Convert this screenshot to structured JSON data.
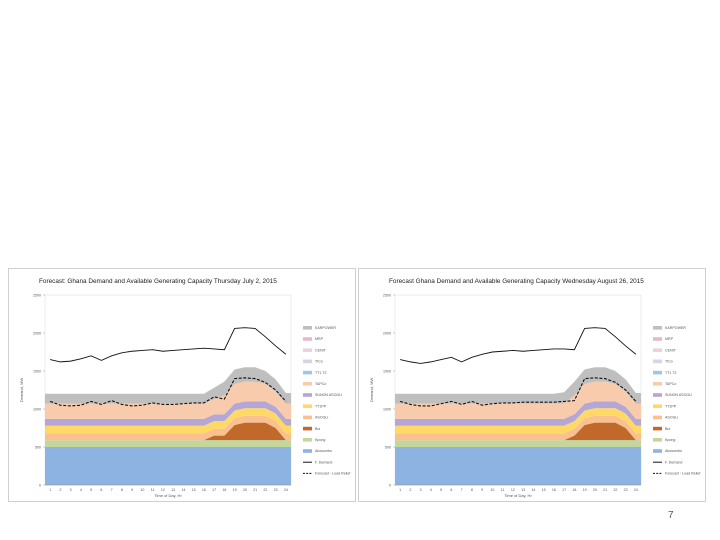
{
  "page_number": "7",
  "chart_data": [
    {
      "type": "area",
      "title": "Forecast: Ghana Demand and Available Generating Capacity Thursday July 2, 2015",
      "xlabel": "Time of Day, Hr",
      "ylabel": "Demand, MW",
      "ylim": [
        0,
        2500
      ],
      "yticks": [
        0,
        500,
        1000,
        1500,
        2000,
        2500
      ],
      "categories": [
        "1",
        "2",
        "3",
        "4",
        "5",
        "6",
        "7",
        "8",
        "9",
        "10",
        "11",
        "12",
        "13",
        "14",
        "15",
        "16",
        "17",
        "18",
        "19",
        "20",
        "21",
        "22",
        "23",
        "24"
      ],
      "series": [
        {
          "name": "Akosombo",
          "color": "#8db3e2",
          "values": [
            500,
            500,
            500,
            500,
            500,
            500,
            500,
            500,
            500,
            500,
            500,
            500,
            500,
            500,
            500,
            500,
            500,
            500,
            500,
            500,
            500,
            500,
            500,
            500
          ]
        },
        {
          "name": "Kpong",
          "color": "#c3d69b",
          "values": [
            90,
            90,
            90,
            90,
            90,
            90,
            90,
            90,
            90,
            90,
            90,
            90,
            90,
            90,
            90,
            90,
            90,
            90,
            90,
            90,
            90,
            90,
            90,
            90
          ]
        },
        {
          "name": "Bui",
          "color": "#c0692b",
          "values": [
            0,
            0,
            0,
            0,
            0,
            0,
            0,
            0,
            0,
            0,
            0,
            0,
            0,
            0,
            0,
            0,
            60,
            60,
            200,
            230,
            230,
            230,
            160,
            0
          ]
        },
        {
          "name": "ASOGLI",
          "color": "#fac090",
          "values": [
            90,
            90,
            90,
            90,
            90,
            90,
            90,
            90,
            90,
            90,
            90,
            90,
            90,
            90,
            90,
            90,
            90,
            90,
            90,
            90,
            90,
            90,
            90,
            90
          ]
        },
        {
          "name": "TT1PP",
          "color": "#ffd966",
          "values": [
            100,
            100,
            100,
            100,
            100,
            100,
            100,
            100,
            100,
            100,
            100,
            100,
            100,
            100,
            100,
            100,
            100,
            100,
            100,
            100,
            100,
            100,
            100,
            100
          ]
        },
        {
          "name": "SUNON ASOGLI",
          "color": "#b4a7d6",
          "values": [
            90,
            90,
            90,
            90,
            90,
            90,
            90,
            90,
            90,
            90,
            90,
            90,
            90,
            90,
            90,
            90,
            90,
            90,
            90,
            90,
            90,
            90,
            90,
            90
          ]
        },
        {
          "name": "TAPCo",
          "color": "#f8cbad",
          "values": [
            200,
            200,
            200,
            200,
            200,
            200,
            200,
            200,
            200,
            200,
            200,
            200,
            200,
            200,
            200,
            200,
            200,
            250,
            260,
            260,
            260,
            230,
            200,
            200
          ]
        },
        {
          "name": "TT1 T2",
          "color": "#9fc5e8",
          "values": [
            0,
            0,
            0,
            0,
            0,
            0,
            0,
            0,
            0,
            0,
            0,
            0,
            0,
            0,
            0,
            0,
            0,
            0,
            0,
            0,
            0,
            0,
            0,
            0
          ]
        },
        {
          "name": "TICo",
          "color": "#d9d2e9",
          "values": [
            0,
            0,
            0,
            0,
            0,
            0,
            0,
            0,
            0,
            0,
            0,
            0,
            0,
            0,
            0,
            0,
            0,
            0,
            0,
            0,
            0,
            0,
            0,
            0
          ]
        },
        {
          "name": "CENIT",
          "color": "#ead1dc",
          "values": [
            0,
            0,
            0,
            0,
            0,
            0,
            0,
            0,
            0,
            0,
            0,
            0,
            0,
            0,
            0,
            0,
            0,
            0,
            0,
            0,
            0,
            0,
            0,
            0
          ]
        },
        {
          "name": "MRP",
          "color": "#e6b8d0",
          "values": [
            0,
            0,
            0,
            0,
            0,
            0,
            0,
            0,
            0,
            0,
            0,
            0,
            0,
            0,
            0,
            0,
            0,
            0,
            0,
            0,
            0,
            0,
            0,
            0
          ]
        },
        {
          "name": "KARPOWER",
          "color": "#bfbfbf",
          "values": [
            130,
            130,
            130,
            130,
            130,
            130,
            130,
            130,
            130,
            130,
            130,
            130,
            130,
            130,
            130,
            130,
            150,
            180,
            190,
            190,
            190,
            170,
            160,
            140
          ]
        }
      ],
      "lines": [
        {
          "name": "F. Demand",
          "style": "solid",
          "color": "#111111",
          "values": [
            1650,
            1620,
            1630,
            1660,
            1700,
            1640,
            1700,
            1740,
            1760,
            1770,
            1780,
            1760,
            1770,
            1780,
            1790,
            1800,
            1790,
            1780,
            2060,
            2070,
            2060,
            1950,
            1830,
            1720
          ]
        },
        {
          "name": "Forecast - Load Relief",
          "style": "dashed",
          "color": "#111111",
          "values": [
            1100,
            1050,
            1040,
            1050,
            1100,
            1060,
            1110,
            1060,
            1040,
            1050,
            1080,
            1060,
            1060,
            1070,
            1080,
            1080,
            1160,
            1130,
            1400,
            1410,
            1400,
            1350,
            1250,
            1100
          ]
        }
      ]
    },
    {
      "type": "area",
      "title": "Forecast Ghana Demand and Available Generating Capacity Wednesday August 26, 2015",
      "xlabel": "Time of Day, Hr",
      "ylabel": "Demand, MW",
      "ylim": [
        0,
        2500
      ],
      "yticks": [
        0,
        500,
        1000,
        1500,
        2000,
        2500
      ],
      "categories": [
        "1",
        "2",
        "3",
        "4",
        "5",
        "6",
        "7",
        "8",
        "9",
        "10",
        "11",
        "12",
        "13",
        "14",
        "15",
        "16",
        "17",
        "18",
        "19",
        "20",
        "21",
        "22",
        "23",
        "24"
      ],
      "series": [
        {
          "name": "Akosombo",
          "color": "#8db3e2",
          "values": [
            500,
            500,
            500,
            500,
            500,
            500,
            500,
            500,
            500,
            500,
            500,
            500,
            500,
            500,
            500,
            500,
            500,
            500,
            500,
            500,
            500,
            500,
            500,
            500
          ]
        },
        {
          "name": "Kpong",
          "color": "#c3d69b",
          "values": [
            90,
            90,
            90,
            90,
            90,
            90,
            90,
            90,
            90,
            90,
            90,
            90,
            90,
            90,
            90,
            90,
            90,
            90,
            90,
            90,
            90,
            90,
            90,
            90
          ]
        },
        {
          "name": "Bui",
          "color": "#c0692b",
          "values": [
            0,
            0,
            0,
            0,
            0,
            0,
            0,
            0,
            0,
            0,
            0,
            0,
            0,
            0,
            0,
            0,
            0,
            60,
            200,
            230,
            230,
            230,
            160,
            0
          ]
        },
        {
          "name": "ASOGLI",
          "color": "#fac090",
          "values": [
            90,
            90,
            90,
            90,
            90,
            90,
            90,
            90,
            90,
            90,
            90,
            90,
            90,
            90,
            90,
            90,
            90,
            90,
            90,
            90,
            90,
            90,
            90,
            90
          ]
        },
        {
          "name": "TT1PP",
          "color": "#ffd966",
          "values": [
            100,
            100,
            100,
            100,
            100,
            100,
            100,
            100,
            100,
            100,
            100,
            100,
            100,
            100,
            100,
            100,
            100,
            100,
            100,
            100,
            100,
            100,
            100,
            100
          ]
        },
        {
          "name": "SUNON ASOGLI",
          "color": "#b4a7d6",
          "values": [
            90,
            90,
            90,
            90,
            90,
            90,
            90,
            90,
            90,
            90,
            90,
            90,
            90,
            90,
            90,
            90,
            90,
            90,
            90,
            90,
            90,
            90,
            90,
            90
          ]
        },
        {
          "name": "TAPCo",
          "color": "#f8cbad",
          "values": [
            200,
            200,
            200,
            200,
            200,
            200,
            200,
            200,
            200,
            200,
            200,
            200,
            200,
            200,
            200,
            200,
            200,
            250,
            260,
            260,
            260,
            230,
            200,
            200
          ]
        },
        {
          "name": "TT1 T2",
          "color": "#9fc5e8",
          "values": [
            0,
            0,
            0,
            0,
            0,
            0,
            0,
            0,
            0,
            0,
            0,
            0,
            0,
            0,
            0,
            0,
            0,
            0,
            0,
            0,
            0,
            0,
            0,
            0
          ]
        },
        {
          "name": "TICo",
          "color": "#d9d2e9",
          "values": [
            0,
            0,
            0,
            0,
            0,
            0,
            0,
            0,
            0,
            0,
            0,
            0,
            0,
            0,
            0,
            0,
            0,
            0,
            0,
            0,
            0,
            0,
            0,
            0
          ]
        },
        {
          "name": "CENIT",
          "color": "#ead1dc",
          "values": [
            0,
            0,
            0,
            0,
            0,
            0,
            0,
            0,
            0,
            0,
            0,
            0,
            0,
            0,
            0,
            0,
            0,
            0,
            0,
            0,
            0,
            0,
            0,
            0
          ]
        },
        {
          "name": "MRP",
          "color": "#e6b8d0",
          "values": [
            0,
            0,
            0,
            0,
            0,
            0,
            0,
            0,
            0,
            0,
            0,
            0,
            0,
            0,
            0,
            0,
            0,
            0,
            0,
            0,
            0,
            0,
            0,
            0
          ]
        },
        {
          "name": "KARPOWER",
          "color": "#bfbfbf",
          "values": [
            130,
            130,
            130,
            130,
            130,
            130,
            130,
            130,
            130,
            130,
            130,
            130,
            130,
            130,
            130,
            130,
            150,
            180,
            190,
            190,
            190,
            170,
            160,
            140
          ]
        }
      ],
      "lines": [
        {
          "name": "F. Demand",
          "style": "solid",
          "color": "#111111",
          "values": [
            1650,
            1620,
            1600,
            1620,
            1650,
            1680,
            1620,
            1680,
            1720,
            1750,
            1760,
            1770,
            1760,
            1770,
            1780,
            1790,
            1790,
            1780,
            2060,
            2070,
            2060,
            1950,
            1830,
            1720
          ]
        },
        {
          "name": "Forecast - Load Relief",
          "style": "dashed",
          "color": "#111111",
          "values": [
            1100,
            1060,
            1040,
            1040,
            1070,
            1100,
            1060,
            1100,
            1050,
            1070,
            1080,
            1080,
            1090,
            1090,
            1090,
            1090,
            1100,
            1110,
            1400,
            1410,
            1400,
            1350,
            1250,
            1100
          ]
        }
      ]
    }
  ]
}
